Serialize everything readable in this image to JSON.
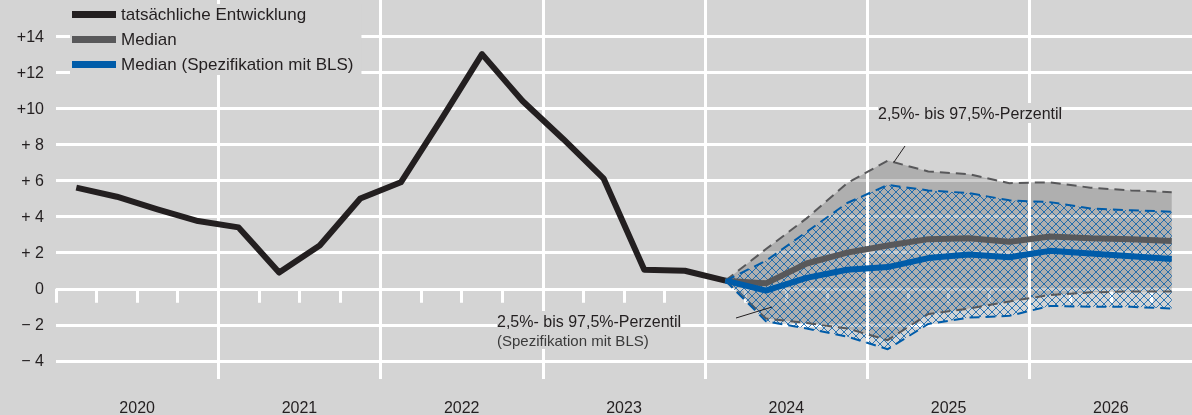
{
  "chart_data": {
    "type": "line",
    "xlim": [
      2020,
      2027
    ],
    "xticks": [
      {
        "value": 2020,
        "label": null
      },
      {
        "value": 2020.25,
        "label": null
      },
      {
        "value": 2020.5,
        "label": "2020"
      },
      {
        "value": 2020.75,
        "label": null
      },
      {
        "value": 2021,
        "label": null
      },
      {
        "value": 2021.25,
        "label": null
      },
      {
        "value": 2021.5,
        "label": "2021"
      },
      {
        "value": 2021.75,
        "label": null
      },
      {
        "value": 2022,
        "label": null
      },
      {
        "value": 2022.25,
        "label": null
      },
      {
        "value": 2022.5,
        "label": "2022"
      },
      {
        "value": 2022.75,
        "label": null
      },
      {
        "value": 2023,
        "label": null
      },
      {
        "value": 2023.25,
        "label": null
      },
      {
        "value": 2023.5,
        "label": "2023"
      },
      {
        "value": 2023.75,
        "label": null
      },
      {
        "value": 2024,
        "label": null
      },
      {
        "value": 2024.25,
        "label": null
      },
      {
        "value": 2024.5,
        "label": "2024"
      },
      {
        "value": 2024.75,
        "label": null
      },
      {
        "value": 2025,
        "label": null
      },
      {
        "value": 2025.25,
        "label": null
      },
      {
        "value": 2025.5,
        "label": "2025"
      },
      {
        "value": 2025.75,
        "label": null
      },
      {
        "value": 2026,
        "label": null
      },
      {
        "value": 2026.25,
        "label": null
      },
      {
        "value": 2026.5,
        "label": "2026"
      },
      {
        "value": 2026.75,
        "label": null
      }
    ],
    "ylim": [
      -5,
      16
    ],
    "yticks": [
      {
        "value": -4,
        "label": "− 4"
      },
      {
        "value": -2,
        "label": "− 2"
      },
      0,
      {
        "value": 2,
        "label": "+ 2"
      },
      {
        "value": 4,
        "label": "+ 4"
      },
      {
        "value": 6,
        "label": "+ 6"
      },
      {
        "value": 8,
        "label": "+ 8"
      },
      {
        "value": 10,
        "label": "+10"
      },
      {
        "value": 12,
        "label": "+12"
      },
      {
        "value": 14,
        "label": "+14"
      }
    ],
    "grid": "y",
    "legend": "top left",
    "ref_lines": [
      {
        "axis": "x",
        "value": 2021,
        "color": "#ffffff"
      },
      {
        "axis": "x",
        "value": 2022,
        "color": "#ffffff"
      },
      {
        "axis": "x",
        "value": 2023,
        "color": "#ffffff"
      },
      {
        "axis": "x",
        "value": 2024,
        "color": "#ffffff"
      },
      {
        "axis": "x",
        "value": 2025,
        "color": "#ffffff"
      },
      {
        "axis": "x",
        "value": 2026,
        "color": "#ffffff"
      }
    ],
    "annotations": [
      "2,5%- bis 97,5%-Perzentil",
      "2,5%- bis 97,5%-Perzentil\n(Spezifikation mit BLS)"
    ],
    "series": [
      {
        "name": "tatsächliche Entwicklung",
        "color": "#231f20",
        "x": [
          2020.125,
          2020.375,
          2020.625,
          2020.875,
          2021.125,
          2021.375,
          2021.625,
          2021.875,
          2022.125,
          2022.375,
          2022.625,
          2022.875,
          2023.125,
          2023.375,
          2023.625,
          2023.875,
          2024.125
        ],
        "values": [
          5.6,
          5.1,
          4.4,
          3.75,
          3.4,
          0.9,
          2.4,
          5.0,
          5.9,
          9.4,
          13.0,
          10.4,
          8.3,
          6.1,
          1.05,
          1.0,
          0.45
        ]
      },
      {
        "name": "Median",
        "color": "#58585a",
        "x": [
          2024.125,
          2024.375,
          2024.625,
          2024.875,
          2025.125,
          2025.375,
          2025.625,
          2025.875,
          2026.125,
          2026.375,
          2026.625,
          2026.875
        ],
        "values": [
          0.45,
          0.3,
          1.4,
          2.0,
          2.4,
          2.75,
          2.8,
          2.6,
          2.9,
          2.8,
          2.75,
          2.65
        ],
        "lower": [
          0.45,
          -1.65,
          -1.9,
          -2.2,
          -2.85,
          -1.4,
          -1.1,
          -0.7,
          -0.35,
          -0.2,
          -0.15,
          -0.15
        ],
        "upper": [
          0.45,
          2.2,
          3.9,
          5.85,
          7.1,
          6.5,
          6.35,
          5.85,
          5.9,
          5.6,
          5.45,
          5.35
        ]
      },
      {
        "name": "Median (Spezifikation mit BLS)",
        "color": "#005ca9",
        "x": [
          2024.125,
          2024.375,
          2024.625,
          2024.875,
          2025.125,
          2025.375,
          2025.625,
          2025.875,
          2026.125,
          2026.375,
          2026.625,
          2026.875
        ],
        "values": [
          0.45,
          -0.1,
          0.6,
          1.05,
          1.2,
          1.7,
          1.9,
          1.75,
          2.1,
          1.95,
          1.8,
          1.65
        ],
        "lower": [
          0.45,
          -1.8,
          -2.2,
          -2.65,
          -3.35,
          -1.95,
          -1.6,
          -1.5,
          -0.95,
          -1.0,
          -1.0,
          -1.1
        ],
        "upper": [
          0.45,
          1.55,
          3.15,
          4.75,
          5.75,
          5.45,
          5.3,
          4.9,
          4.8,
          4.45,
          4.35,
          4.27
        ]
      },
      {
        "color": "#58585a",
        "line_style": "dashed",
        "x": [
          2024.125,
          2024.375,
          2024.625,
          2024.875,
          2025.125,
          2025.375,
          2025.625,
          2025.875,
          2026.125,
          2026.375,
          2026.625,
          2026.875
        ],
        "values": [
          0.45,
          2.2,
          3.9,
          5.85,
          7.1,
          6.5,
          6.35,
          5.85,
          5.9,
          5.6,
          5.45,
          5.35
        ]
      },
      {
        "color": "#58585a",
        "line_style": "dashed",
        "x": [
          2024.125,
          2024.375,
          2024.625,
          2024.875,
          2025.125,
          2025.375,
          2025.625,
          2025.875,
          2026.125,
          2026.375,
          2026.625,
          2026.875
        ],
        "values": [
          0.45,
          -1.65,
          -1.9,
          -2.2,
          -2.85,
          -1.4,
          -1.1,
          -0.7,
          -0.35,
          -0.2,
          -0.15,
          -0.15
        ]
      },
      {
        "color": "#005ca9",
        "line_style": "dashed",
        "x": [
          2024.125,
          2024.375,
          2024.625,
          2024.875,
          2025.125,
          2025.375,
          2025.625,
          2025.875,
          2026.125,
          2026.375,
          2026.625,
          2026.875
        ],
        "values": [
          0.45,
          1.55,
          3.15,
          4.75,
          5.75,
          5.45,
          5.3,
          4.9,
          4.8,
          4.45,
          4.35,
          4.27
        ]
      },
      {
        "color": "#005ca9",
        "line_style": "dashed",
        "x": [
          2024.125,
          2024.375,
          2024.625,
          2024.875,
          2025.125,
          2025.375,
          2025.625,
          2025.875,
          2026.125,
          2026.375,
          2026.625,
          2026.875
        ],
        "values": [
          0.45,
          -1.8,
          -2.2,
          -2.65,
          -3.35,
          -1.95,
          -1.6,
          -1.5,
          -0.95,
          -1.0,
          -1.0,
          -1.1
        ]
      }
    ]
  }
}
